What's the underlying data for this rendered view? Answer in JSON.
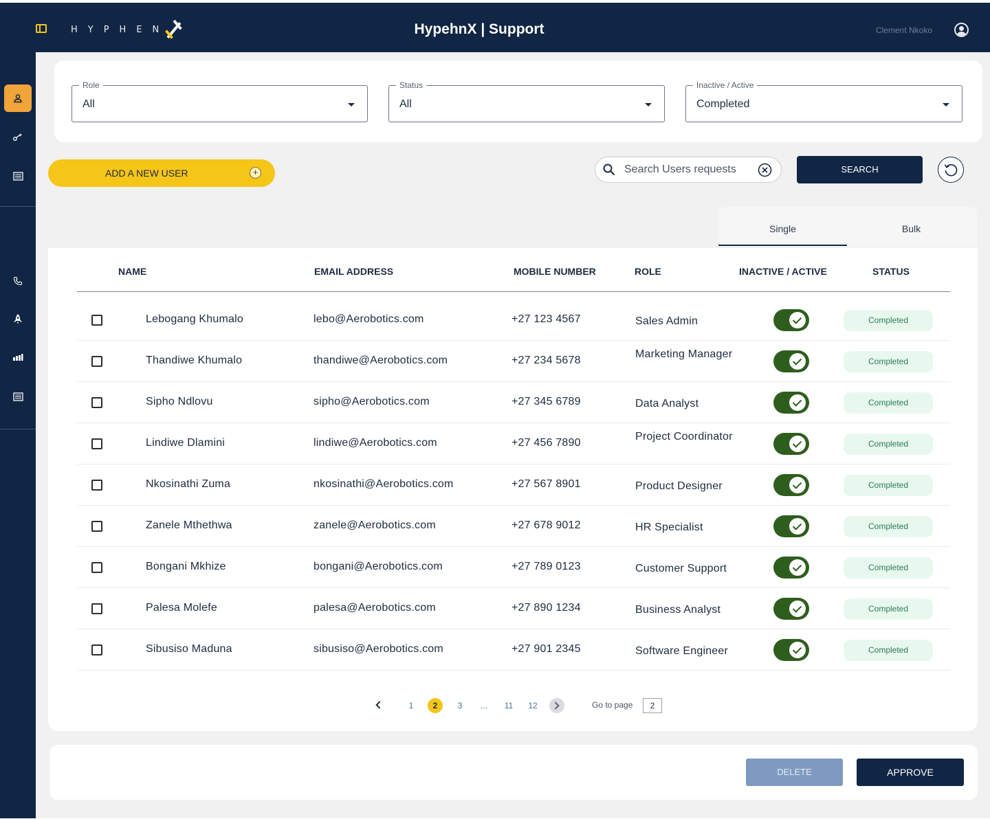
{
  "header": {
    "logo_text": "HYPHEN",
    "title": "HypehnX | Support",
    "user_name": "Clement Nkoko"
  },
  "sidebar": {
    "items": [
      {
        "icon": "user-icon",
        "active": true
      },
      {
        "icon": "key-icon",
        "active": false
      },
      {
        "icon": "document-icon",
        "active": false
      },
      {
        "icon": "phone-icon",
        "active": false
      },
      {
        "icon": "rocket-icon",
        "active": false
      },
      {
        "icon": "bar-chart-icon",
        "active": false
      },
      {
        "icon": "list-document-icon",
        "active": false
      }
    ]
  },
  "filters": {
    "role": {
      "label": "Role",
      "value": "All"
    },
    "status": {
      "label": "Status",
      "value": "All"
    },
    "active": {
      "label": "Inactive / Active",
      "value": "Completed"
    }
  },
  "actions": {
    "add_user_label": "ADD A NEW USER",
    "search_placeholder": "Search Users requests",
    "search_button": "SEARCH"
  },
  "tabs": {
    "single": "Single",
    "bulk": "Bulk",
    "active": "Single"
  },
  "table": {
    "headers": {
      "name": "NAME",
      "email": "EMAIL ADDRESS",
      "mobile": "MOBILE NUMBER",
      "role": "ROLE",
      "active": "INACTIVE / ACTIVE",
      "status": "STATUS"
    },
    "rows": [
      {
        "name": "Lebogang Khumalo",
        "email": "lebo@Aerobotics.com",
        "mobile": "+27 123 4567",
        "role": "Sales Admin",
        "active": true,
        "status": "Completed"
      },
      {
        "name": "Thandiwe Khumalo",
        "email": "thandiwe@Aerobotics.com",
        "mobile": "+27 234 5678",
        "role": "Marketing Manager",
        "active": true,
        "status": "Completed"
      },
      {
        "name": "Sipho Ndlovu",
        "email": "sipho@Aerobotics.com",
        "mobile": "+27 345 6789",
        "role": "Data Analyst",
        "active": true,
        "status": "Completed"
      },
      {
        "name": "Lindiwe Dlamini",
        "email": "lindiwe@Aerobotics.com",
        "mobile": "+27 456 7890",
        "role": "Project Coordinator",
        "active": true,
        "status": "Completed"
      },
      {
        "name": "Nkosinathi Zuma",
        "email": "nkosinathi@Aerobotics.com",
        "mobile": "+27 567 8901",
        "role": "Product Designer",
        "active": true,
        "status": "Completed"
      },
      {
        "name": "Zanele Mthethwa",
        "email": "zanele@Aerobotics.com",
        "mobile": "+27 678 9012",
        "role": "HR Specialist",
        "active": true,
        "status": "Completed"
      },
      {
        "name": "Bongani Mkhize",
        "email": "bongani@Aerobotics.com",
        "mobile": "+27 789 0123",
        "role": "Customer Support",
        "active": true,
        "status": "Completed"
      },
      {
        "name": "Palesa Molefe",
        "email": "palesa@Aerobotics.com",
        "mobile": "+27 890 1234",
        "role": "Business Analyst",
        "active": true,
        "status": "Completed"
      },
      {
        "name": "Sibusiso Maduna",
        "email": "sibusiso@Aerobotics.com",
        "mobile": "+27 901 2345",
        "role": "Software Engineer",
        "active": true,
        "status": "Completed"
      }
    ]
  },
  "pagination": {
    "pages": [
      "1",
      "2",
      "3",
      "...",
      "11",
      "12"
    ],
    "current": "2",
    "goto_label": "Go to page",
    "goto_value": "2"
  },
  "footer": {
    "delete_label": "DELETE",
    "approve_label": "APPROVE"
  },
  "colors": {
    "navy": "#112544",
    "accent_yellow": "#f5c518",
    "active_rail": "#f0a43a",
    "toggle_green": "#2e5e1d",
    "status_bg": "#e8f8ef",
    "status_text": "#2b7d54"
  }
}
